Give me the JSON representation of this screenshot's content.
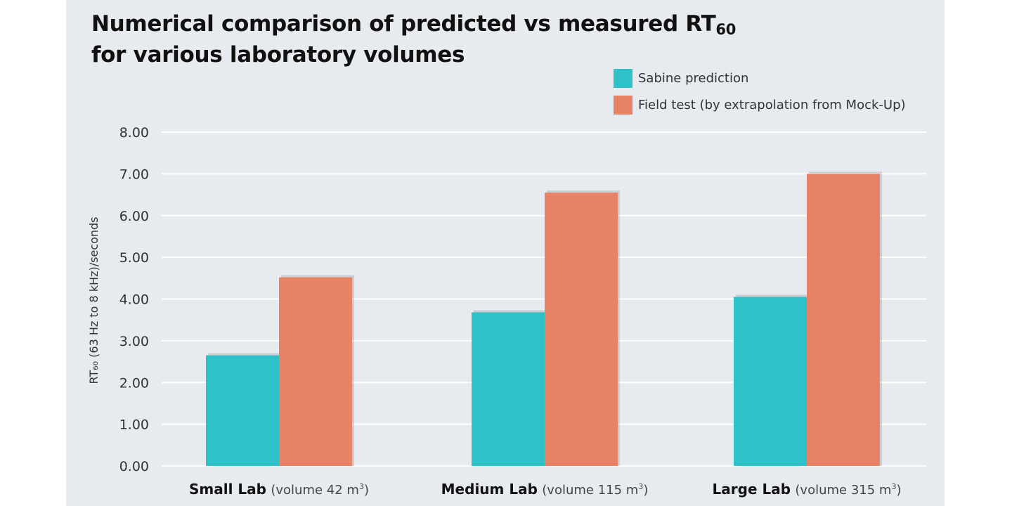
{
  "chart_data": {
    "type": "bar",
    "title_main": "Numerical comparison of predicted vs measured RT",
    "title_sub": "60",
    "title_line2": "for various laboratory volumes",
    "ylabel": "RT₆₀ (63 Hz to 8 kHz)/seconds",
    "ylim": [
      0,
      8
    ],
    "y_ticks": [
      "0.00",
      "1.00",
      "2.00",
      "3.00",
      "4.00",
      "5.00",
      "6.00",
      "7.00",
      "8.00"
    ],
    "grid": true,
    "legend_position": "top-right",
    "categories": [
      {
        "name": "Small Lab",
        "detail": "(volume 42 m",
        "unit_sup": "3",
        "close": ")"
      },
      {
        "name": "Medium Lab",
        "detail": "(volume 115 m",
        "unit_sup": "3",
        "close": ")"
      },
      {
        "name": "Large Lab",
        "detail": "(volume 315 m",
        "unit_sup": "3",
        "close": ")"
      }
    ],
    "series": [
      {
        "name": "Sabine prediction",
        "color": "#2ec1c8",
        "values": [
          2.65,
          3.68,
          4.05
        ]
      },
      {
        "name": "Field test (by extrapolation from Mock-Up)",
        "color": "#e88266",
        "values": [
          4.52,
          6.55,
          7.0
        ]
      }
    ]
  }
}
